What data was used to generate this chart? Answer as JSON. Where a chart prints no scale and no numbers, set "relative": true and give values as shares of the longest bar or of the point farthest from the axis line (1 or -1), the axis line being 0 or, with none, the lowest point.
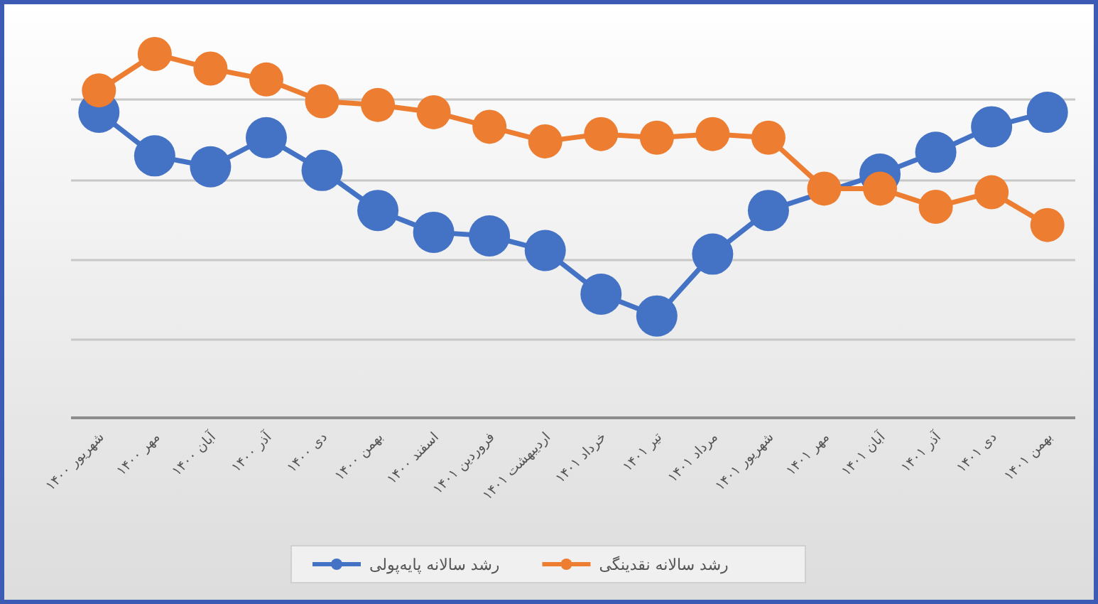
{
  "chart_data": {
    "type": "line",
    "relative": true,
    "grid": "y",
    "legend": "bottom",
    "marker": "circle",
    "line_style": "solid",
    "categories": [
      "شهریور ۱۴۰۰",
      "مهر ۱۴۰۰",
      "آبان ۱۴۰۰",
      "آذر ۱۴۰۰",
      "دی ۱۴۰۰",
      "بهمن ۱۴۰۰",
      "اسفند ۱۴۰۰",
      "فروردین ۱۴۰۱",
      "اردیبهشت ۱۴۰۱",
      "خرداد ۱۴۰۱",
      "تیر ۱۴۰۱",
      "مرداد ۱۴۰۱",
      "شهریور ۱۴۰۱",
      "مهر ۱۴۰۱",
      "آبان ۱۴۰۱",
      "آذر ۱۴۰۱",
      "دی ۱۴۰۱",
      "بهمن ۱۴۰۱"
    ],
    "series": [
      {
        "name": "رشد سالانه پایه‌پولی",
        "color": "#4472c4",
        "values": [
          0.84,
          0.72,
          0.69,
          0.77,
          0.68,
          0.57,
          0.51,
          0.5,
          0.46,
          0.34,
          0.28,
          0.45,
          0.57,
          null,
          0.67,
          0.73,
          0.8,
          0.84
        ]
      },
      {
        "name": "رشد سالانه نقدینگی",
        "color": "#ed7d31",
        "values": [
          0.9,
          1,
          0.96,
          0.93,
          0.87,
          0.86,
          0.84,
          0.8,
          0.76,
          0.78,
          0.77,
          0.78,
          0.77,
          0.63,
          0.63,
          0.58,
          0.62,
          0.53
        ]
      }
    ]
  }
}
